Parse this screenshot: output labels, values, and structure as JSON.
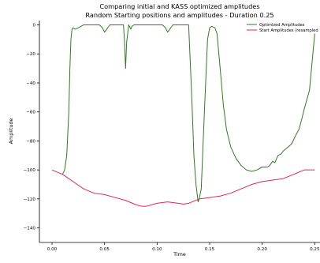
{
  "chart_data": {
    "type": "line",
    "title": "Comparing initial and KASS optimized amplitudes",
    "subtitle": "Random Starting positions and amplitudes - Duration 0.25",
    "xlabel": "Time",
    "ylabel": "Amplitude",
    "xlim": [
      -0.012,
      0.255
    ],
    "ylim": [
      -150,
      3
    ],
    "xticks": [
      0.0,
      0.05,
      0.1,
      0.15,
      0.2,
      0.25
    ],
    "xtick_labels": [
      "0.00",
      "0.05",
      "0.10",
      "0.15",
      "0.20",
      "0.25"
    ],
    "yticks": [
      0,
      -20,
      -40,
      -60,
      -80,
      -100,
      -120,
      -140
    ],
    "ytick_labels": [
      "0",
      "−20",
      "−40",
      "−60",
      "−80",
      "−100",
      "−120",
      "−140"
    ],
    "grid": false,
    "legend_position": "top-right",
    "series": [
      {
        "name": "Optimized Amplitudes",
        "color": "#2e7d1e",
        "x": [
          0.01,
          0.012,
          0.014,
          0.016,
          0.017,
          0.018,
          0.019,
          0.02,
          0.022,
          0.025,
          0.03,
          0.035,
          0.04,
          0.045,
          0.048,
          0.05,
          0.052,
          0.055,
          0.06,
          0.065,
          0.068,
          0.069,
          0.07,
          0.071,
          0.073,
          0.075,
          0.076,
          0.078,
          0.08,
          0.085,
          0.09,
          0.095,
          0.1,
          0.105,
          0.108,
          0.11,
          0.112,
          0.115,
          0.12,
          0.125,
          0.13,
          0.133,
          0.135,
          0.137,
          0.139,
          0.14,
          0.142,
          0.145,
          0.148,
          0.15,
          0.152,
          0.155,
          0.157,
          0.16,
          0.163,
          0.166,
          0.17,
          0.175,
          0.18,
          0.185,
          0.19,
          0.195,
          0.2,
          0.205,
          0.207,
          0.21,
          0.212,
          0.215,
          0.218,
          0.22,
          0.225,
          0.228,
          0.232,
          0.235,
          0.238,
          0.24,
          0.245,
          0.25
        ],
        "y": [
          -103,
          -100,
          -90,
          -60,
          -30,
          -10,
          -3,
          -2,
          -3,
          -2,
          0,
          0,
          0,
          0,
          -2,
          -5,
          -3,
          0,
          0,
          0,
          0,
          -12,
          -30,
          -12,
          0,
          -3,
          -1,
          0,
          0,
          0,
          0,
          0,
          0,
          0,
          -2,
          -5,
          -3,
          0,
          0,
          0,
          0,
          -50,
          -90,
          -110,
          -122,
          -120,
          -113,
          -60,
          -10,
          -2,
          -1,
          -2,
          -6,
          -30,
          -55,
          -72,
          -84,
          -92,
          -97,
          -100,
          -101,
          -100,
          -98,
          -98,
          -97,
          -94,
          -95,
          -90,
          -89,
          -87,
          -84,
          -82,
          -76,
          -72,
          -64,
          -58,
          -45,
          -6
        ]
      },
      {
        "name": "Start Amplitudes (resampled",
        "color": "#e0245e",
        "x": [
          0.0,
          0.01,
          0.02,
          0.03,
          0.04,
          0.05,
          0.06,
          0.07,
          0.08,
          0.085,
          0.09,
          0.1,
          0.11,
          0.12,
          0.125,
          0.13,
          0.14,
          0.15,
          0.16,
          0.17,
          0.18,
          0.19,
          0.2,
          0.21,
          0.22,
          0.23,
          0.24,
          0.25
        ],
        "y": [
          -100,
          -103,
          -108,
          -113,
          -116,
          -117,
          -119,
          -121,
          -124,
          -125,
          -125,
          -123,
          -122,
          -123,
          -123.5,
          -123,
          -120,
          -119,
          -118,
          -116,
          -113,
          -110,
          -108,
          -107,
          -106,
          -103,
          -100,
          -100
        ]
      }
    ]
  }
}
